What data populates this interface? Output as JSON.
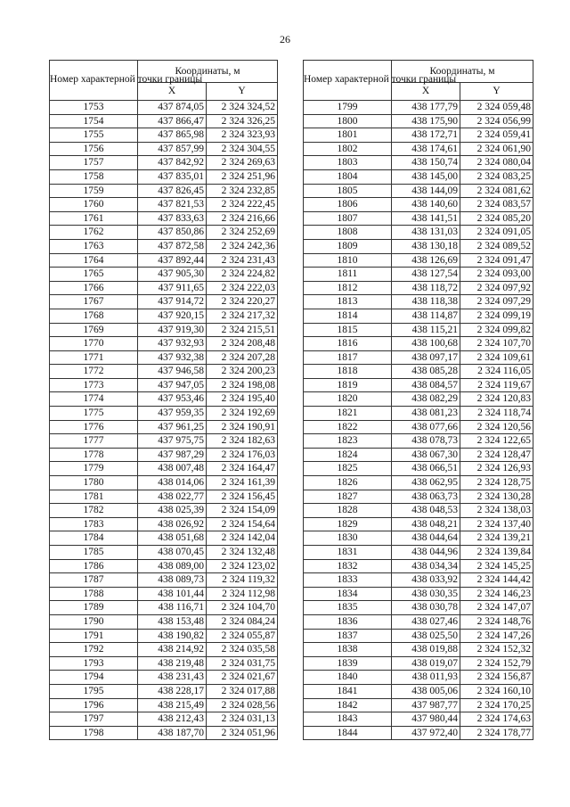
{
  "page_number": "26",
  "header": {
    "point_col": "Номер характерной точки границы",
    "coords": "Координаты, м",
    "x": "X",
    "y": "Y"
  },
  "left_table": [
    [
      "1753",
      "437 874,05",
      "2 324 324,52"
    ],
    [
      "1754",
      "437 866,47",
      "2 324 326,25"
    ],
    [
      "1755",
      "437 865,98",
      "2 324 323,93"
    ],
    [
      "1756",
      "437 857,99",
      "2 324 304,55"
    ],
    [
      "1757",
      "437 842,92",
      "2 324 269,63"
    ],
    [
      "1758",
      "437 835,01",
      "2 324 251,96"
    ],
    [
      "1759",
      "437 826,45",
      "2 324 232,85"
    ],
    [
      "1760",
      "437 821,53",
      "2 324 222,45"
    ],
    [
      "1761",
      "437 833,63",
      "2 324 216,66"
    ],
    [
      "1762",
      "437 850,86",
      "2 324 252,69"
    ],
    [
      "1763",
      "437 872,58",
      "2 324 242,36"
    ],
    [
      "1764",
      "437 892,44",
      "2 324 231,43"
    ],
    [
      "1765",
      "437 905,30",
      "2 324 224,82"
    ],
    [
      "1766",
      "437 911,65",
      "2 324 222,03"
    ],
    [
      "1767",
      "437 914,72",
      "2 324 220,27"
    ],
    [
      "1768",
      "437 920,15",
      "2 324 217,32"
    ],
    [
      "1769",
      "437 919,30",
      "2 324 215,51"
    ],
    [
      "1770",
      "437 932,93",
      "2 324 208,48"
    ],
    [
      "1771",
      "437 932,38",
      "2 324 207,28"
    ],
    [
      "1772",
      "437 946,58",
      "2 324 200,23"
    ],
    [
      "1773",
      "437 947,05",
      "2 324 198,08"
    ],
    [
      "1774",
      "437 953,46",
      "2 324 195,40"
    ],
    [
      "1775",
      "437 959,35",
      "2 324 192,69"
    ],
    [
      "1776",
      "437 961,25",
      "2 324 190,91"
    ],
    [
      "1777",
      "437 975,75",
      "2 324 182,63"
    ],
    [
      "1778",
      "437 987,29",
      "2 324 176,03"
    ],
    [
      "1779",
      "438 007,48",
      "2 324 164,47"
    ],
    [
      "1780",
      "438 014,06",
      "2 324 161,39"
    ],
    [
      "1781",
      "438 022,77",
      "2 324 156,45"
    ],
    [
      "1782",
      "438 025,39",
      "2 324 154,09"
    ],
    [
      "1783",
      "438 026,92",
      "2 324 154,64"
    ],
    [
      "1784",
      "438 051,68",
      "2 324 142,04"
    ],
    [
      "1785",
      "438 070,45",
      "2 324 132,48"
    ],
    [
      "1786",
      "438 089,00",
      "2 324 123,02"
    ],
    [
      "1787",
      "438 089,73",
      "2 324 119,32"
    ],
    [
      "1788",
      "438 101,44",
      "2 324 112,98"
    ],
    [
      "1789",
      "438 116,71",
      "2 324 104,70"
    ],
    [
      "1790",
      "438 153,48",
      "2 324 084,24"
    ],
    [
      "1791",
      "438 190,82",
      "2 324 055,87"
    ],
    [
      "1792",
      "438 214,92",
      "2 324 035,58"
    ],
    [
      "1793",
      "438 219,48",
      "2 324 031,75"
    ],
    [
      "1794",
      "438 231,43",
      "2 324 021,67"
    ],
    [
      "1795",
      "438 228,17",
      "2 324 017,88"
    ],
    [
      "1796",
      "438 215,49",
      "2 324 028,56"
    ],
    [
      "1797",
      "438 212,43",
      "2 324 031,13"
    ],
    [
      "1798",
      "438 187,70",
      "2 324 051,96"
    ]
  ],
  "right_table": [
    [
      "1799",
      "438 177,79",
      "2 324 059,48"
    ],
    [
      "1800",
      "438 175,90",
      "2 324 056,99"
    ],
    [
      "1801",
      "438 172,71",
      "2 324 059,41"
    ],
    [
      "1802",
      "438 174,61",
      "2 324 061,90"
    ],
    [
      "1803",
      "438 150,74",
      "2 324 080,04"
    ],
    [
      "1804",
      "438 145,00",
      "2 324 083,25"
    ],
    [
      "1805",
      "438 144,09",
      "2 324 081,62"
    ],
    [
      "1806",
      "438 140,60",
      "2 324 083,57"
    ],
    [
      "1807",
      "438 141,51",
      "2 324 085,20"
    ],
    [
      "1808",
      "438 131,03",
      "2 324 091,05"
    ],
    [
      "1809",
      "438 130,18",
      "2 324 089,52"
    ],
    [
      "1810",
      "438 126,69",
      "2 324 091,47"
    ],
    [
      "1811",
      "438 127,54",
      "2 324 093,00"
    ],
    [
      "1812",
      "438 118,72",
      "2 324 097,92"
    ],
    [
      "1813",
      "438 118,38",
      "2 324 097,29"
    ],
    [
      "1814",
      "438 114,87",
      "2 324 099,19"
    ],
    [
      "1815",
      "438 115,21",
      "2 324 099,82"
    ],
    [
      "1816",
      "438 100,68",
      "2 324 107,70"
    ],
    [
      "1817",
      "438 097,17",
      "2 324 109,61"
    ],
    [
      "1818",
      "438 085,28",
      "2 324 116,05"
    ],
    [
      "1819",
      "438 084,57",
      "2 324 119,67"
    ],
    [
      "1820",
      "438 082,29",
      "2 324 120,83"
    ],
    [
      "1821",
      "438 081,23",
      "2 324 118,74"
    ],
    [
      "1822",
      "438 077,66",
      "2 324 120,56"
    ],
    [
      "1823",
      "438 078,73",
      "2 324 122,65"
    ],
    [
      "1824",
      "438 067,30",
      "2 324 128,47"
    ],
    [
      "1825",
      "438 066,51",
      "2 324 126,93"
    ],
    [
      "1826",
      "438 062,95",
      "2 324 128,75"
    ],
    [
      "1827",
      "438 063,73",
      "2 324 130,28"
    ],
    [
      "1828",
      "438 048,53",
      "2 324 138,03"
    ],
    [
      "1829",
      "438 048,21",
      "2 324 137,40"
    ],
    [
      "1830",
      "438 044,64",
      "2 324 139,21"
    ],
    [
      "1831",
      "438 044,96",
      "2 324 139,84"
    ],
    [
      "1832",
      "438 034,34",
      "2 324 145,25"
    ],
    [
      "1833",
      "438 033,92",
      "2 324 144,42"
    ],
    [
      "1834",
      "438 030,35",
      "2 324 146,23"
    ],
    [
      "1835",
      "438 030,78",
      "2 324 147,07"
    ],
    [
      "1836",
      "438 027,46",
      "2 324 148,76"
    ],
    [
      "1837",
      "438 025,50",
      "2 324 147,26"
    ],
    [
      "1838",
      "438 019,88",
      "2 324 152,32"
    ],
    [
      "1839",
      "438 019,07",
      "2 324 152,79"
    ],
    [
      "1840",
      "438 011,93",
      "2 324 156,87"
    ],
    [
      "1841",
      "438 005,06",
      "2 324 160,10"
    ],
    [
      "1842",
      "437 987,77",
      "2 324 170,25"
    ],
    [
      "1843",
      "437 980,44",
      "2 324 174,63"
    ],
    [
      "1844",
      "437 972,40",
      "2 324 178,77"
    ]
  ]
}
